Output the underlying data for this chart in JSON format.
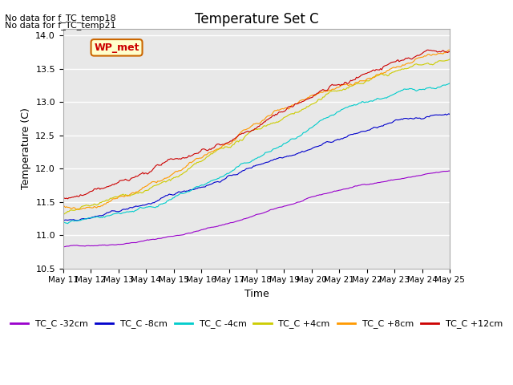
{
  "title": "Temperature Set C",
  "xlabel": "Time",
  "ylabel": "Temperature (C)",
  "ylim": [
    10.5,
    14.1
  ],
  "xlim": [
    0,
    14
  ],
  "xtick_labels": [
    "May 11",
    "May 12",
    "May 13",
    "May 14",
    "May 15",
    "May 16",
    "May 17",
    "May 18",
    "May 19",
    "May 20",
    "May 21",
    "May 22",
    "May 23",
    "May 24",
    "May 25"
  ],
  "no_data_text": [
    "No data for f_TC_temp18",
    "No data for f_TC_temp21"
  ],
  "wp_met_label": "WP_met",
  "series": [
    {
      "label": "TC_C -32cm",
      "color": "#9900cc"
    },
    {
      "label": "TC_C -8cm",
      "color": "#0000cc"
    },
    {
      "label": "TC_C -4cm",
      "color": "#00cccc"
    },
    {
      "label": "TC_C +4cm",
      "color": "#cccc00"
    },
    {
      "label": "TC_C +8cm",
      "color": "#ff9900"
    },
    {
      "label": "TC_C +12cm",
      "color": "#cc0000"
    }
  ],
  "background_color": "#ffffff",
  "plot_bg_color": "#e8e8e8",
  "grid_color": "#ffffff",
  "seed": 42
}
